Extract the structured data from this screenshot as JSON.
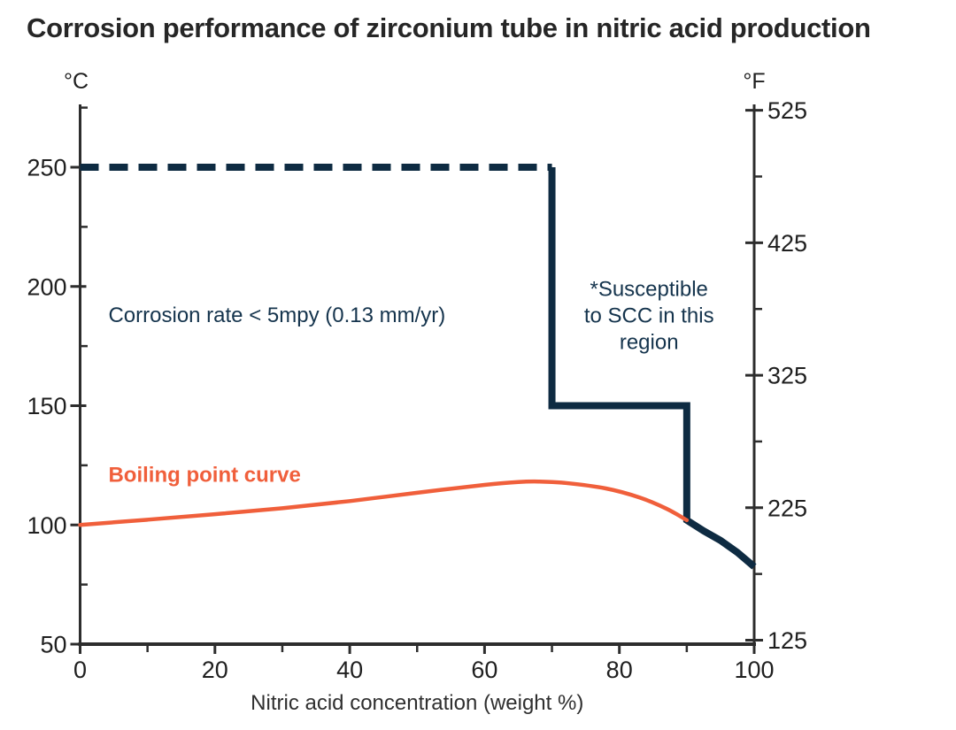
{
  "chart_data": {
    "type": "line",
    "title": "Corrosion performance of zirconium tube in nitric acid production",
    "xlabel": "Nitric acid concentration (weight %)",
    "x_axis": {
      "range": [
        0,
        100
      ],
      "major_ticks": [
        0,
        20,
        40,
        60,
        80,
        100
      ],
      "minor_ticks": [
        10,
        30,
        50,
        70,
        90
      ]
    },
    "left_axis": {
      "unit": "°C",
      "range": [
        50,
        275
      ],
      "major_ticks": [
        50,
        100,
        150,
        200,
        250
      ],
      "minor_ticks": [
        75,
        125,
        175,
        225,
        275
      ]
    },
    "right_axis": {
      "unit": "°F",
      "major_ticks": [
        125,
        225,
        325,
        425,
        525
      ],
      "minor_ticks": [
        175,
        275,
        375,
        475
      ]
    },
    "colors": {
      "navy": "#0e2b42",
      "orange": "#f05f3b",
      "axis": "#2d2d2d",
      "tick_text": "#1f1f1f",
      "title_text": "#262626"
    },
    "series": [
      {
        "name": "corrosion-limit-dashed",
        "type": "dashed",
        "color": "#0e2b42",
        "width": 8,
        "points": [
          [
            0,
            250
          ],
          [
            70,
            250
          ]
        ]
      },
      {
        "name": "corrosion-limit-boundary",
        "type": "solid",
        "color": "#0e2b42",
        "width": 8,
        "points": [
          [
            70,
            250
          ],
          [
            70,
            150
          ],
          [
            90,
            150
          ],
          [
            90,
            102
          ],
          [
            92.5,
            97.5
          ],
          [
            95,
            93.5
          ],
          [
            97.5,
            88.5
          ],
          [
            100,
            82.5
          ]
        ]
      },
      {
        "name": "boiling-point-curve",
        "type": "smooth",
        "color": "#f05f3b",
        "width": 4.5,
        "points": [
          [
            0,
            100
          ],
          [
            10,
            102.2
          ],
          [
            20,
            104.5
          ],
          [
            30,
            107
          ],
          [
            40,
            110
          ],
          [
            50,
            113.5
          ],
          [
            60,
            116.8
          ],
          [
            65,
            118
          ],
          [
            68,
            118.2
          ],
          [
            72,
            117.6
          ],
          [
            78,
            115.3
          ],
          [
            83,
            111.5
          ],
          [
            87,
            106.8
          ],
          [
            90,
            102
          ]
        ]
      }
    ],
    "annotations": [
      {
        "name": "corrosion-rate-label",
        "lines": [
          "Corrosion rate < 5mpy (0.13 mm/yr)"
        ],
        "x": 4.2,
        "y": 188,
        "color": "#15344d",
        "align": "start",
        "bold": false
      },
      {
        "name": "scc-region-label",
        "lines": [
          "*Susceptible",
          "to SCC in this",
          "region"
        ],
        "x": 84.4,
        "y": 199,
        "color": "#15344d",
        "align": "middle",
        "bold": false
      },
      {
        "name": "boiling-point-label",
        "lines": [
          "Boiling point curve"
        ],
        "x": 4.2,
        "y": 121,
        "color": "#f05f3b",
        "align": "start",
        "bold": true
      }
    ]
  }
}
